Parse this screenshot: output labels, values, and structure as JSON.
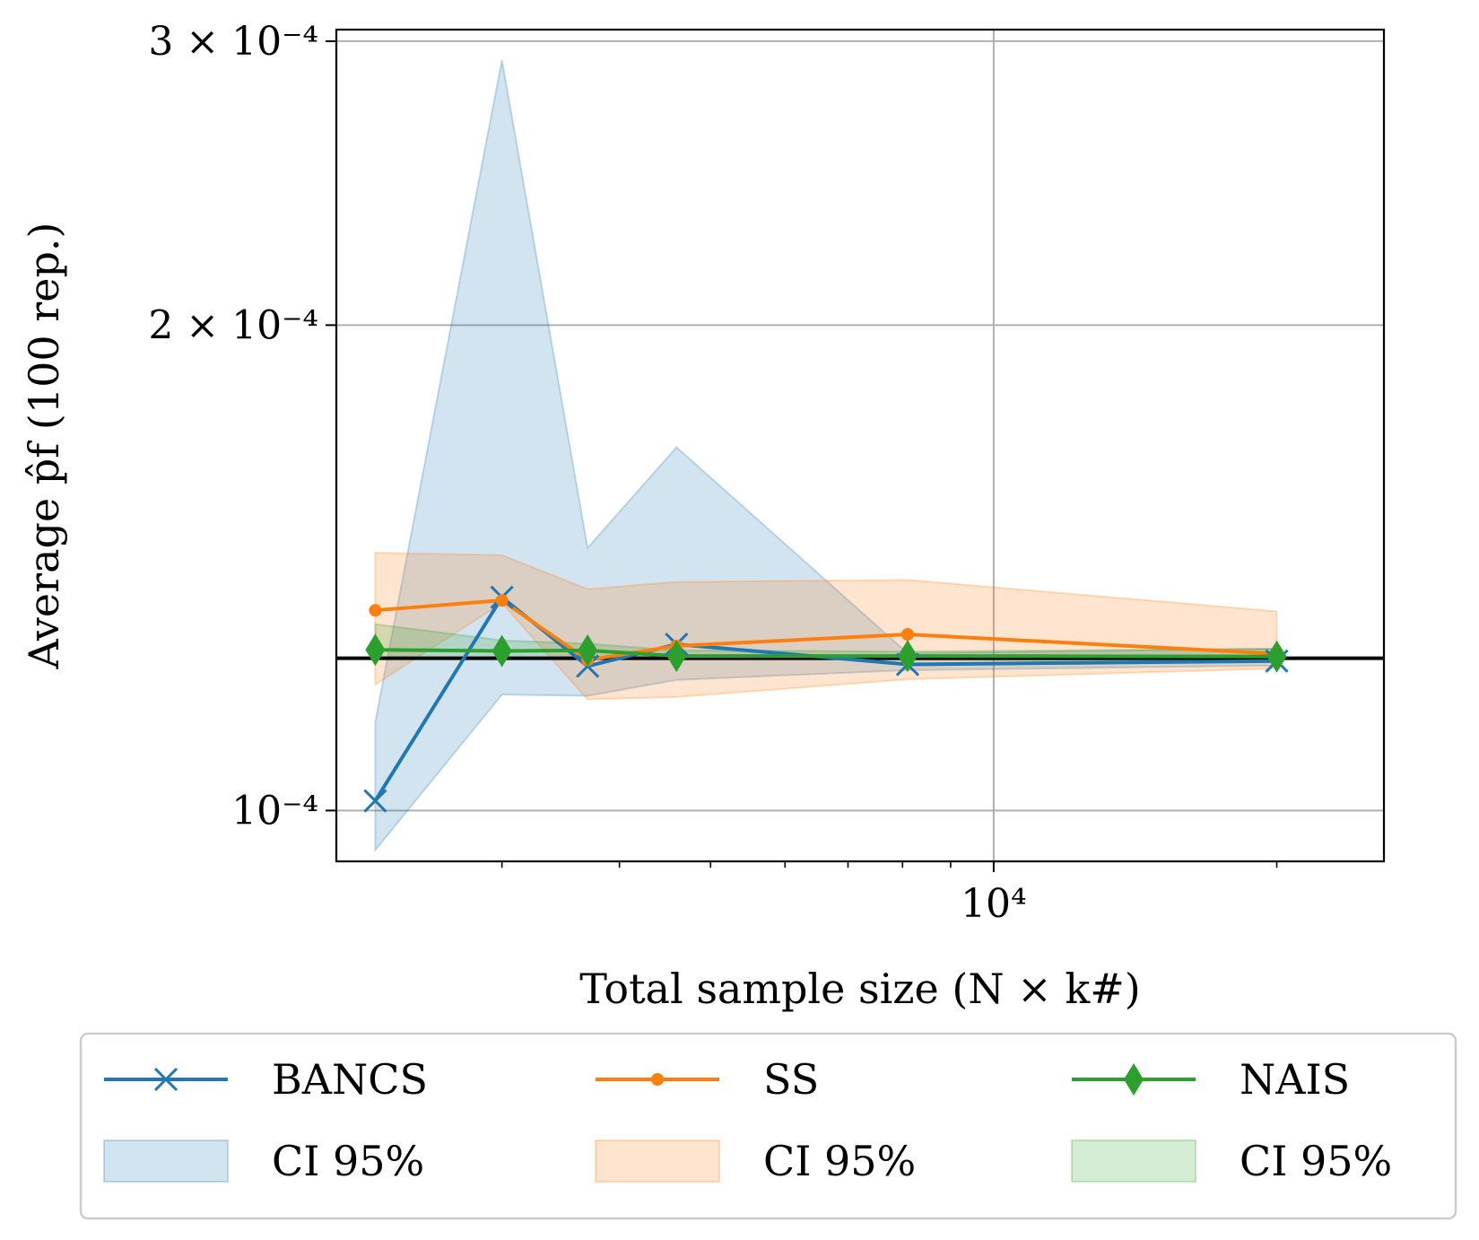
{
  "chart_data": {
    "type": "line",
    "title": "",
    "xlabel": "Total sample size (N × k#)",
    "ylabel": "Average p̂f (100 rep.)",
    "xscale": "log",
    "yscale": "log",
    "xlim": [
      2000,
      26000
    ],
    "ylim": [
      9.3e-05,
      0.000305
    ],
    "x_ticks": [
      {
        "value": 10000,
        "label": "10⁴"
      }
    ],
    "y_ticks": [
      {
        "value": 0.0001,
        "label": "10⁻⁴"
      },
      {
        "value": 0.0002,
        "label": "2 × 10⁻⁴"
      },
      {
        "value": 0.0003,
        "label": "3 × 10⁻⁴"
      }
    ],
    "grid": true,
    "reference_line": {
      "y": 0.0001243,
      "color": "#000000"
    },
    "series": [
      {
        "name": "BANCS",
        "color": "#1f77b4",
        "marker": "x",
        "x": [
          2200,
          3000,
          3700,
          4600,
          8100,
          20000
        ],
        "y": [
          0.0001014,
          0.0001356,
          0.0001229,
          0.0001268,
          0.0001232,
          0.0001238
        ],
        "ci_upper": [
          0.0001135,
          0.000292,
          0.0001455,
          0.000168,
          0.0001252,
          0.000126
        ],
        "ci_lower": [
          9.45e-05,
          0.000118,
          0.0001178,
          0.0001205,
          0.0001222,
          0.000123
        ]
      },
      {
        "name": "SS",
        "color": "#ff7f0e",
        "marker": "o",
        "x": [
          2200,
          3000,
          3700,
          4600,
          8100,
          20000
        ],
        "y": [
          0.0001331,
          0.000135,
          0.000124,
          0.0001265,
          0.0001286,
          0.0001251
        ],
        "ci_upper": [
          0.0001445,
          0.000144,
          0.0001372,
          0.0001386,
          0.000139,
          0.0001329
        ],
        "ci_lower": [
          0.0001197,
          0.0001345,
          0.0001172,
          0.0001176,
          0.0001206,
          0.0001225
        ]
      },
      {
        "name": "NAIS",
        "color": "#2ca02c",
        "marker": "d",
        "x": [
          2200,
          3000,
          3700,
          4600,
          8100,
          20000
        ],
        "y": [
          0.0001258,
          0.0001256,
          0.0001257,
          0.0001247,
          0.0001247,
          0.0001246
        ],
        "ci_upper": [
          0.0001305,
          0.0001275,
          0.0001269,
          0.0001257,
          0.0001255,
          0.000126
        ],
        "ci_lower": [
          0.0001244,
          0.0001245,
          0.0001244,
          0.0001241,
          0.0001241,
          0.0001238
        ]
      }
    ],
    "legend": {
      "placement": "bottom",
      "entries": [
        {
          "label": "BANCS",
          "kind": "line",
          "series": 0
        },
        {
          "label": "SS",
          "kind": "line",
          "series": 1
        },
        {
          "label": "NAIS",
          "kind": "line",
          "series": 2
        },
        {
          "label": "CI 95%",
          "kind": "band",
          "series": 0
        },
        {
          "label": "CI 95%",
          "kind": "band",
          "series": 1
        },
        {
          "label": "CI 95%",
          "kind": "band",
          "series": 2
        }
      ]
    }
  }
}
